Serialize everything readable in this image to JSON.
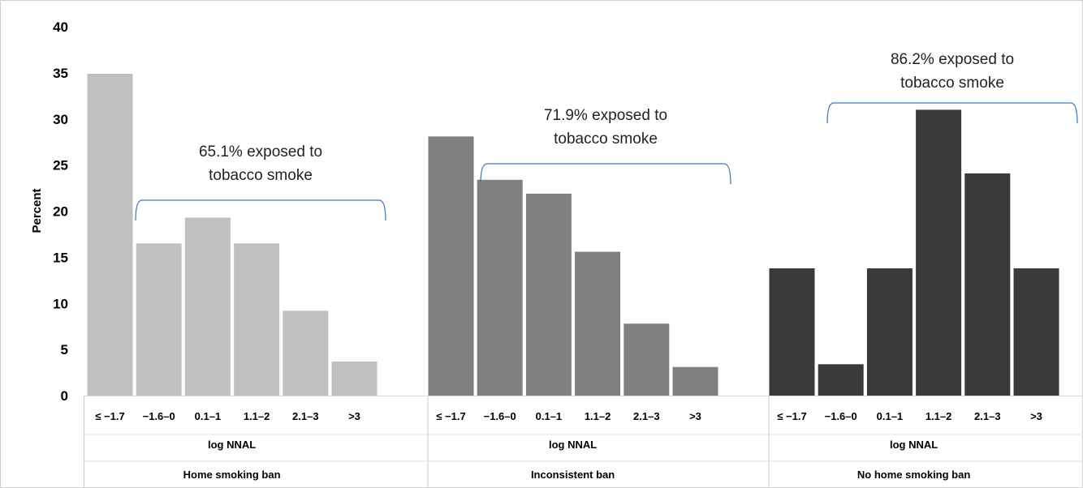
{
  "chart_data": {
    "type": "bar",
    "ylabel": "Percent",
    "ylim": [
      0,
      40
    ],
    "yticks": [
      "0",
      "5",
      "10",
      "15",
      "20",
      "25",
      "30",
      "35",
      "40"
    ],
    "categories": [
      "≤ −1.7",
      "−1.6–0",
      "0.1–1",
      "1.1–2",
      "2.1–3",
      ">3"
    ],
    "xlabel": "log NNAL",
    "grid": false,
    "groups": [
      {
        "name": "Home smoking ban",
        "color": "#c0c0c0",
        "values": [
          34.9,
          16.5,
          19.3,
          16.5,
          9.2,
          3.7
        ],
        "annotation": [
          "65.1% exposed to",
          "tobacco smoke"
        ]
      },
      {
        "name": "Inconsistent ban",
        "color": "#808080",
        "values": [
          28.1,
          23.4,
          21.9,
          15.6,
          7.8,
          3.1
        ],
        "annotation": [
          "71.9% exposed to",
          "tobacco smoke"
        ]
      },
      {
        "name": "No home smoking ban",
        "color": "#3a3a3a",
        "values": [
          13.8,
          3.4,
          13.8,
          31.0,
          24.1,
          13.8
        ],
        "annotation": [
          "86.2% exposed to",
          "tobacco smoke"
        ]
      }
    ]
  }
}
